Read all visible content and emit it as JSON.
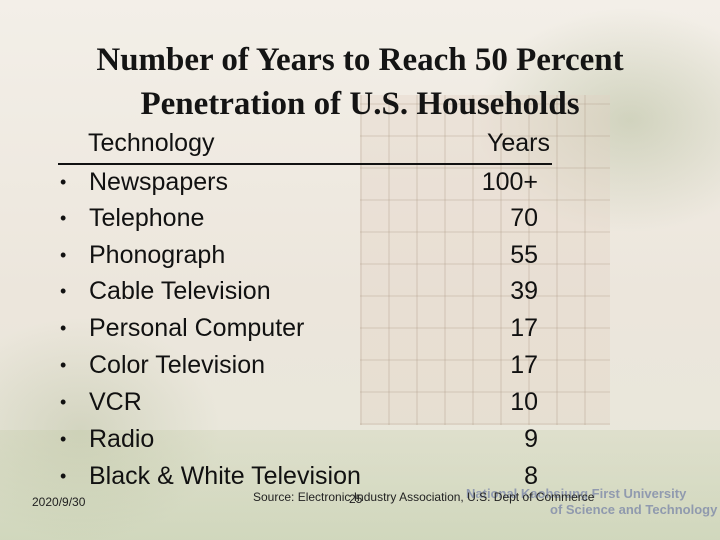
{
  "slide": {
    "title_line1": "Number of Years to Reach 50 Percent",
    "title_line2": "Penetration of U.S. Households",
    "table": {
      "header": {
        "technology": "Technology",
        "years": "Years"
      },
      "bullet": "•",
      "rows": [
        {
          "technology": "Newspapers",
          "years": "100+"
        },
        {
          "technology": "Telephone",
          "years": "70"
        },
        {
          "technology": "Phonograph",
          "years": "55"
        },
        {
          "technology": "Cable Television",
          "years": "39"
        },
        {
          "technology": "Personal Computer",
          "years": "17"
        },
        {
          "technology": "Color Television",
          "years": "17"
        },
        {
          "technology": "VCR",
          "years": "10"
        },
        {
          "technology": "Radio",
          "years": "9"
        },
        {
          "technology": "Black & White Television",
          "years": "8"
        }
      ]
    },
    "footer": {
      "date": "2020/9/30",
      "source": "Source: Electronic Industry Association, U.S. Dept of Commerce",
      "page_number": "25",
      "watermark_line1": "National Kaohsiung First University",
      "watermark_line2": "of Science and Technology"
    }
  }
}
